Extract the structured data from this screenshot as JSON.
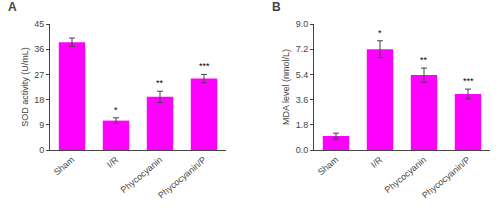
{
  "chart_data": [
    {
      "type": "bar",
      "title": "A",
      "categories": [
        "Sham",
        "I/R",
        "Phycocyanin",
        "Phycocyanin/P"
      ],
      "values": [
        38.5,
        10.5,
        19.0,
        25.5
      ],
      "errors": [
        1.5,
        1.0,
        2.0,
        1.5
      ],
      "y_label": "SOD activity (U/mL)",
      "ylim": [
        0,
        45
      ],
      "yticks": [
        0,
        9,
        18,
        27,
        36,
        45
      ],
      "annotations": [
        {
          "category": "I/R",
          "text": "*"
        },
        {
          "category": "Phycocyanin",
          "text": "**"
        },
        {
          "category": "Phycocyanin/P",
          "text": "***"
        }
      ],
      "color": "#FF00FF",
      "grid": false
    },
    {
      "type": "bar",
      "title": "B",
      "categories": [
        "Sham",
        "I/R",
        "Phycocyanin",
        "Phycocyanin/P"
      ],
      "values": [
        1.0,
        7.2,
        5.35,
        4.0
      ],
      "errors": [
        0.2,
        0.6,
        0.5,
        0.35
      ],
      "y_label": "MDA level (nmol/L)",
      "ylim": [
        0,
        9.0
      ],
      "yticks": [
        {
          "value": 0,
          "label": "0.0"
        },
        1.8,
        3.6,
        5.4,
        7.2,
        {
          "value": 9,
          "label": "9.0"
        }
      ],
      "annotations": [
        {
          "category": "I/R",
          "text": "*"
        },
        {
          "category": "Phycocyanin",
          "text": "**"
        },
        {
          "category": "Phycocyanin/P",
          "text": "***"
        }
      ],
      "color": "#FF00FF",
      "grid": false
    }
  ]
}
